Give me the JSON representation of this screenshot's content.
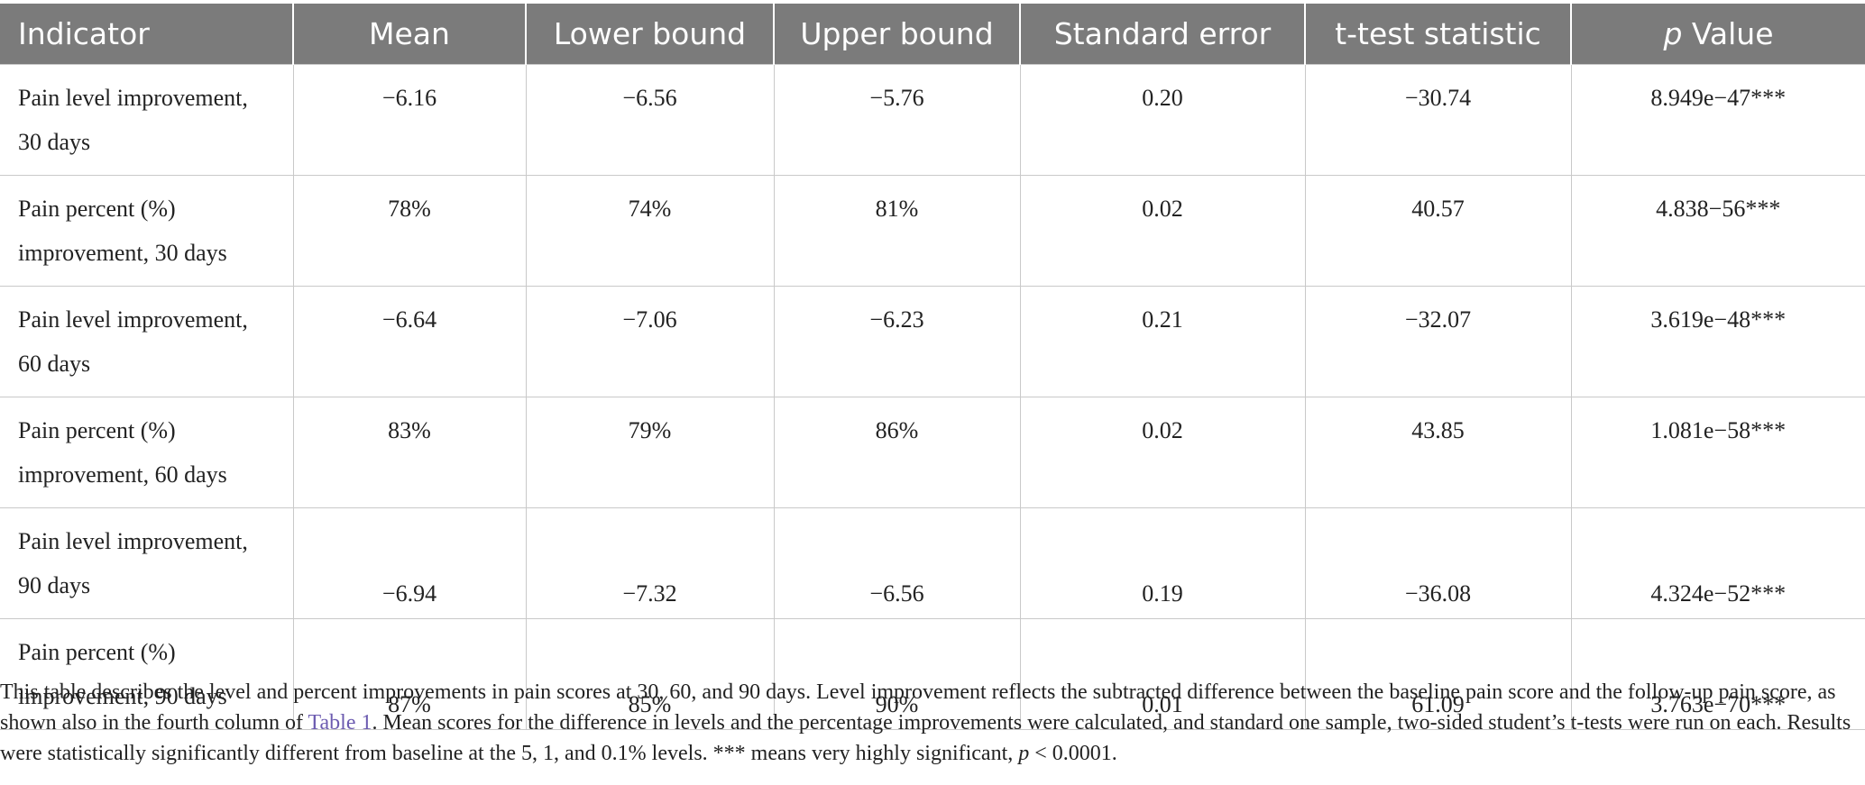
{
  "table": {
    "headers": {
      "indicator": "Indicator",
      "mean": "Mean",
      "lower": "Lower bound",
      "upper": "Upper bound",
      "se": "Standard error",
      "t": "t-test statistic",
      "p_italic": "p",
      "p_rest": " Value"
    },
    "rows": [
      {
        "ind1": "Pain level improvement,",
        "ind2": "30 days",
        "mean": "−6.16",
        "lower": "−6.56",
        "upper": "−5.76",
        "se": "0.20",
        "t": "−30.74",
        "p": "8.949e−47***"
      },
      {
        "ind1": "Pain percent (%)",
        "ind2": "improvement, 30 days",
        "mean": "78%",
        "lower": "74%",
        "upper": "81%",
        "se": "0.02",
        "t": "40.57",
        "p": "4.838−56***"
      },
      {
        "ind1": "Pain level improvement,",
        "ind2": "60 days",
        "mean": "−6.64",
        "lower": "−7.06",
        "upper": "−6.23",
        "se": "0.21",
        "t": "−32.07",
        "p": "3.619e−48***"
      },
      {
        "ind1": "Pain percent (%)",
        "ind2": "improvement, 60 days",
        "mean": "83%",
        "lower": "79%",
        "upper": "86%",
        "se": "0.02",
        "t": "43.85",
        "p": "1.081e−58***"
      },
      {
        "ind1": "Pain level improvement,",
        "ind2": "90 days",
        "mean": "−6.94",
        "lower": "−7.32",
        "upper": "−6.56",
        "se": "0.19",
        "t": "−36.08",
        "p": "4.324e−52***"
      },
      {
        "ind1": "Pain percent (%)",
        "ind2": "improvement, 90 days",
        "mean": "87%",
        "lower": "85%",
        "upper": "90%",
        "se": "0.01",
        "t": "61.09",
        "p": "3.763e−70***"
      }
    ]
  },
  "footnote": {
    "part1": "This table describes the level and percent improvements in pain scores at 30, 60, and 90 days. Level improvement reflects the subtracted difference between the baseline pain score and the follow-up pain score, as shown also in the fourth column of ",
    "link": "Table 1",
    "part2": ". Mean scores for the difference in levels and the percentage improvements were calculated, and standard one sample, two-sided student’s t-tests were run on each. Results were statistically significantly different from baseline at the 5, 1, and 0.1% levels. *** means very highly significant, ",
    "p_italic": "p",
    "part3": " < 0.0001."
  }
}
